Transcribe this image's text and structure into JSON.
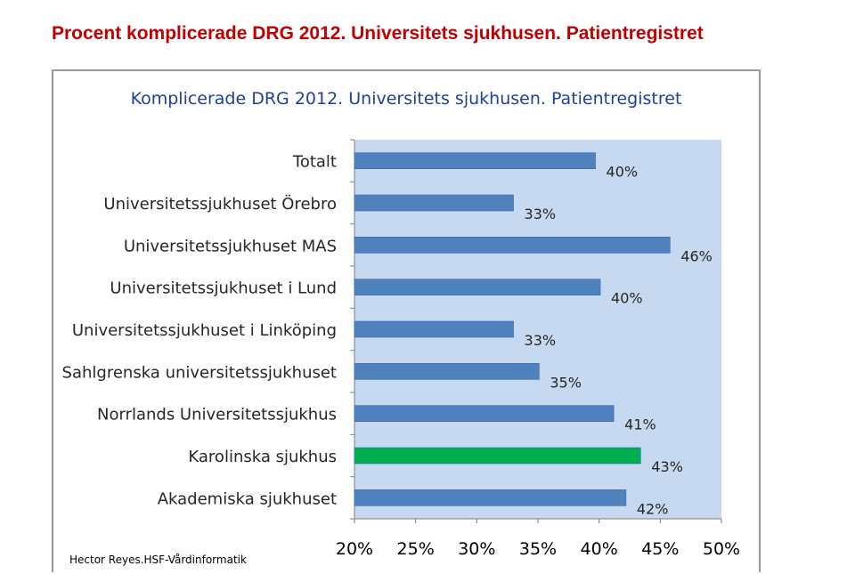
{
  "page": {
    "title": "Procent komplicerade DRG 2012. Universitets sjukhusen. Patientregistret",
    "footer": "Hector Reyes.HSF-Vårdinformatik"
  },
  "chart_data": {
    "type": "bar",
    "orientation": "horizontal",
    "title": "Komplicerade DRG 2012. Universitets sjukhusen. Patientregistret",
    "xlabel": "",
    "ylabel": "",
    "categories": [
      "Totalt",
      "Universitetssjukhuset Örebro",
      "Universitetssjukhuset MAS",
      "Universitetssjukhuset i Lund",
      "Universitetssjukhuset i Linköping",
      "Sahlgrenska universitetssjukhuset",
      "Norrlands Universitetssjukhus",
      "Karolinska sjukhus",
      "Akademiska sjukhuset"
    ],
    "values": [
      39.7,
      33.0,
      45.8,
      40.1,
      33.0,
      35.1,
      41.2,
      43.4,
      42.2
    ],
    "value_labels": [
      "40%",
      "33%",
      "46%",
      "40%",
      "33%",
      "35%",
      "41%",
      "43%",
      "42%"
    ],
    "highlight_index": 7,
    "xlim": [
      20,
      50
    ],
    "xticks": [
      20,
      25,
      30,
      35,
      40,
      45,
      50
    ],
    "xtick_labels": [
      "20%",
      "25%",
      "30%",
      "35%",
      "40%",
      "45%",
      "50%"
    ],
    "grid": false,
    "legend": "none",
    "colors": {
      "bar": "#4f81bd",
      "highlight": "#00b050",
      "plot_background": "#c6d9f1",
      "title": "#1f3f9a",
      "page_title": "#c00000"
    }
  }
}
